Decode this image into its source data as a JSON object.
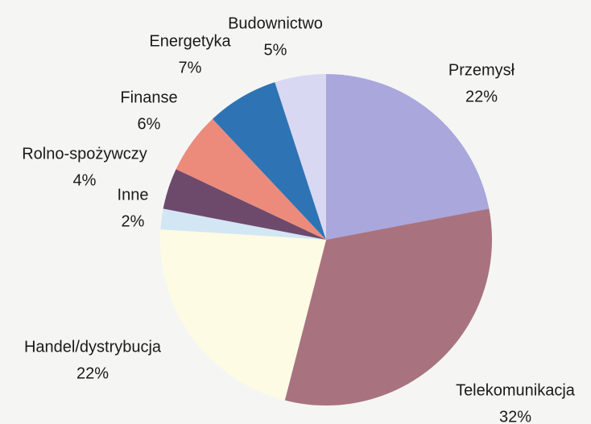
{
  "chart_data": {
    "type": "pie",
    "categories": [
      "Przemysł",
      "Telekomunikacja",
      "Handel/dystrybucja",
      "Inne",
      "Rolno-spożywczy",
      "Finanse",
      "Energetyka",
      "Budownictwo"
    ],
    "values": [
      22,
      32,
      22,
      2,
      4,
      6,
      7,
      5
    ],
    "value_labels": [
      "22%",
      "32%",
      "22%",
      "2%",
      "4%",
      "6%",
      "7%",
      "5%"
    ],
    "colors": [
      "#aaa7dd",
      "#a8737f",
      "#fdfbe4",
      "#d3e6f3",
      "#6d4a6c",
      "#ec8b7b",
      "#2e74b4",
      "#d9d8f2"
    ]
  }
}
